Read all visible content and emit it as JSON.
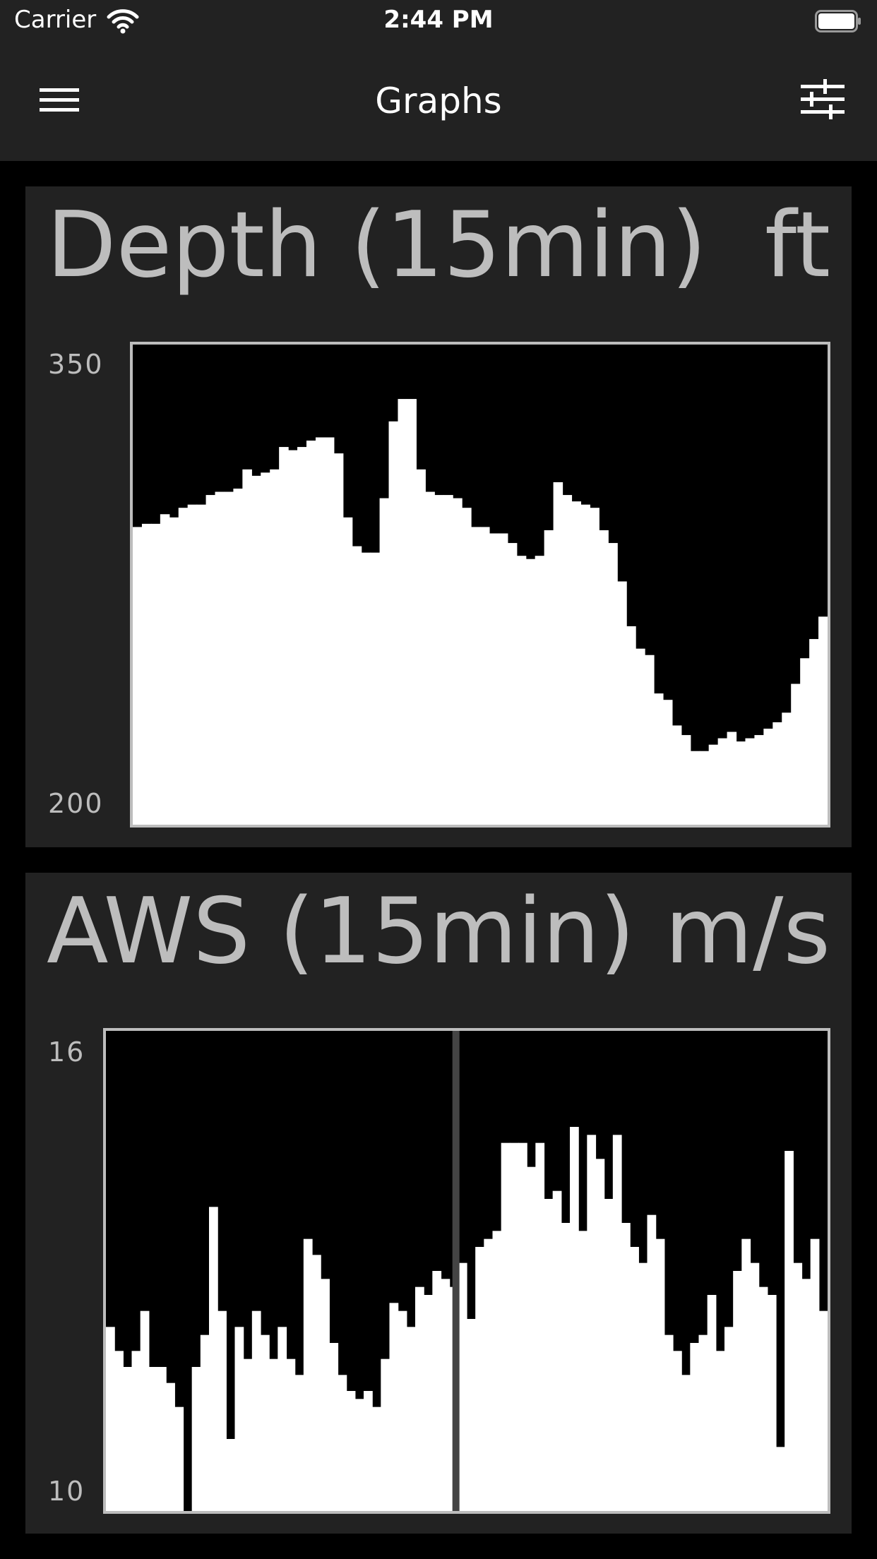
{
  "status_bar": {
    "carrier": "Carrier",
    "time": "2:44 PM"
  },
  "nav": {
    "title": "Graphs",
    "menu_icon": "hamburger-menu-icon",
    "settings_icon": "sliders-icon"
  },
  "colors": {
    "background": "#000000",
    "panel": "#222222",
    "text": "#bdbdbd",
    "plot_fill": "#ffffff",
    "plot_border": "#bdbdbd",
    "divider": "#444444"
  },
  "charts": [
    {
      "title": "Depth (15min)",
      "unit": "ft",
      "chart_data": {
        "type": "area",
        "ylim": [
          200,
          350
        ],
        "y_tick_labels": [
          "350",
          "200"
        ],
        "values": [
          293,
          294,
          294,
          297,
          296,
          299,
          300,
          300,
          303,
          304,
          304,
          305,
          311,
          309,
          310,
          311,
          318,
          317,
          318,
          320,
          321,
          321,
          316,
          296,
          287,
          285,
          285,
          302,
          326,
          333,
          333,
          311,
          304,
          303,
          303,
          302,
          299,
          293,
          293,
          291,
          291,
          288,
          284,
          283,
          284,
          292,
          307,
          303,
          301,
          300,
          299,
          292,
          288,
          276,
          262,
          255,
          253,
          241,
          239,
          231,
          228,
          223,
          223,
          225,
          227,
          229,
          226,
          227,
          228,
          230,
          232,
          235,
          244,
          252,
          258,
          265
        ]
      }
    },
    {
      "title": "AWS (15min)",
      "unit": "m/s",
      "chart_data": {
        "type": "area",
        "ylim": [
          10,
          16
        ],
        "y_tick_labels": [
          "16",
          "10"
        ],
        "values": [
          12.3,
          12.0,
          11.8,
          12.0,
          12.5,
          11.8,
          11.8,
          11.6,
          11.3,
          10.0,
          11.8,
          12.2,
          13.8,
          12.5,
          10.9,
          12.3,
          11.9,
          12.5,
          12.2,
          11.9,
          12.3,
          11.9,
          11.7,
          13.4,
          13.2,
          12.9,
          12.1,
          11.7,
          11.5,
          11.4,
          11.5,
          11.3,
          11.9,
          12.6,
          12.5,
          12.3,
          12.8,
          12.7,
          13.0,
          12.9,
          12.8,
          13.1,
          12.4,
          13.3,
          13.4,
          13.5,
          14.6,
          14.6,
          14.6,
          14.3,
          14.6,
          13.9,
          14.0,
          13.6,
          14.8,
          13.5,
          14.7,
          14.4,
          13.9,
          14.7,
          13.6,
          13.3,
          13.1,
          13.7,
          13.4,
          12.2,
          12.0,
          11.7,
          12.1,
          12.2,
          12.7,
          12.0,
          12.3,
          13.0,
          13.4,
          13.1,
          12.8,
          12.7,
          10.8,
          14.5,
          13.1,
          12.9,
          13.4,
          12.5
        ]
      }
    }
  ]
}
